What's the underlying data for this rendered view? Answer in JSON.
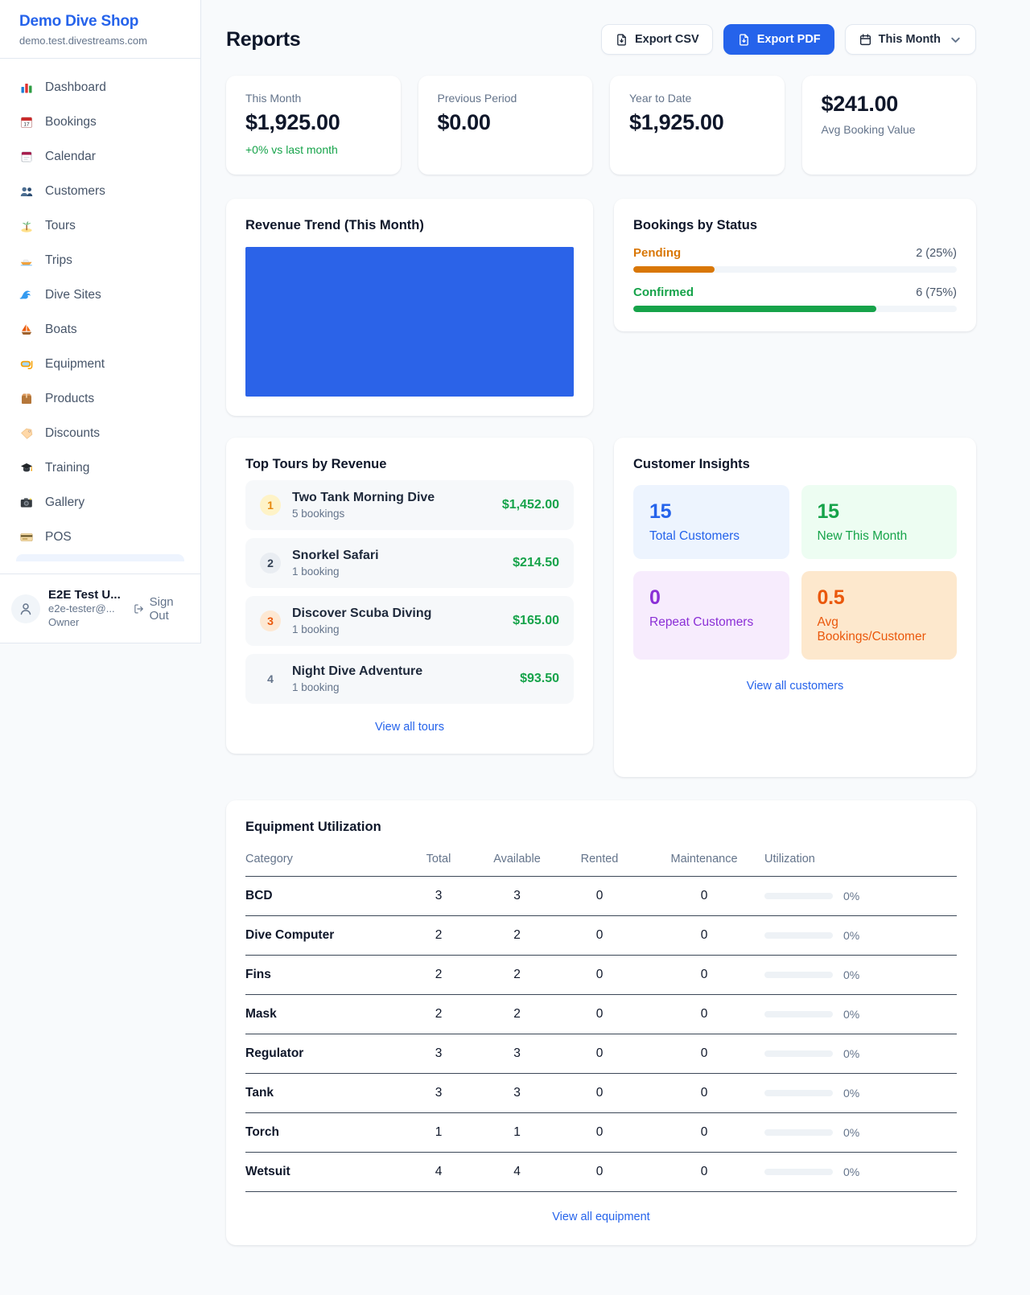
{
  "colors": {
    "accent_blue": "#2563eb",
    "chart_blue": "#2b63e8",
    "green": "#16a34a",
    "pending_orange": "#d97706",
    "maintenance_orange": "#f76707",
    "purple": "#8b2fd6"
  },
  "sidebar": {
    "brand": {
      "name": "Demo Dive Shop",
      "domain": "demo.test.divestreams.com"
    },
    "nav": [
      {
        "icon": "bar-chart",
        "label": "Dashboard"
      },
      {
        "icon": "calendar-date",
        "label": "Bookings"
      },
      {
        "icon": "calendar",
        "label": "Calendar"
      },
      {
        "icon": "users",
        "label": "Customers"
      },
      {
        "icon": "palm-island",
        "label": "Tours"
      },
      {
        "icon": "speedboat",
        "label": "Trips"
      },
      {
        "icon": "wave",
        "label": "Dive Sites"
      },
      {
        "icon": "sailboat",
        "label": "Boats"
      },
      {
        "icon": "dive-mask",
        "label": "Equipment"
      },
      {
        "icon": "box",
        "label": "Products"
      },
      {
        "icon": "tag",
        "label": "Discounts"
      },
      {
        "icon": "grad-cap",
        "label": "Training"
      },
      {
        "icon": "camera",
        "label": "Gallery"
      },
      {
        "icon": "credit-card",
        "label": "POS"
      }
    ],
    "user": {
      "name": "E2E Test U...",
      "email": "e2e-tester@...",
      "role": "Owner",
      "sign_out": "Sign Out"
    }
  },
  "header": {
    "title": "Reports",
    "export_csv": "Export CSV",
    "export_pdf": "Export PDF",
    "period": "This Month"
  },
  "stats": [
    {
      "label": "This Month",
      "value": "$1,925.00",
      "delta": "+0% vs last month"
    },
    {
      "label": "Previous Period",
      "value": "$0.00"
    },
    {
      "label": "Year to Date",
      "value": "$1,925.00"
    },
    {
      "label": "Avg Booking Value",
      "value": "$241.00"
    }
  ],
  "revenue_trend": {
    "title": "Revenue Trend (This Month)"
  },
  "bookings_by_status": {
    "title": "Bookings by Status",
    "rows": [
      {
        "label": "Pending",
        "count": "2 (25%)",
        "pct": 25,
        "color": "#d97706"
      },
      {
        "label": "Confirmed",
        "count": "6 (75%)",
        "pct": 75,
        "color": "#16a34a"
      }
    ]
  },
  "top_tours": {
    "title": "Top Tours by Revenue",
    "items": [
      {
        "rank": "1",
        "name": "Two Tank Morning Dive",
        "bookings": "5 bookings",
        "revenue": "$1,452.00"
      },
      {
        "rank": "2",
        "name": "Snorkel Safari",
        "bookings": "1 booking",
        "revenue": "$214.50"
      },
      {
        "rank": "3",
        "name": "Discover Scuba Diving",
        "bookings": "1 booking",
        "revenue": "$165.00"
      },
      {
        "rank": "4",
        "name": "Night Dive Adventure",
        "bookings": "1 booking",
        "revenue": "$93.50"
      }
    ],
    "view_all": "View all tours"
  },
  "customer_insights": {
    "title": "Customer Insights",
    "tiles": [
      {
        "value": "15",
        "label": "Total Customers",
        "theme": "blue"
      },
      {
        "value": "15",
        "label": "New This Month",
        "theme": "green"
      },
      {
        "value": "0",
        "label": "Repeat Customers",
        "theme": "purple"
      },
      {
        "value": "0.5",
        "label": "Avg Bookings/Customer",
        "theme": "orange"
      }
    ],
    "view_all": "View all customers"
  },
  "equipment": {
    "title": "Equipment Utilization",
    "columns": [
      "Category",
      "Total",
      "Available",
      "Rented",
      "Maintenance",
      "Utilization"
    ],
    "rows": [
      {
        "category": "BCD",
        "total": "3",
        "available": "3",
        "rented": "0",
        "maintenance": "0",
        "utilization": "0%",
        "utilization_pct": 0
      },
      {
        "category": "Dive Computer",
        "total": "2",
        "available": "2",
        "rented": "0",
        "maintenance": "0",
        "utilization": "0%",
        "utilization_pct": 0
      },
      {
        "category": "Fins",
        "total": "2",
        "available": "2",
        "rented": "0",
        "maintenance": "0",
        "utilization": "0%",
        "utilization_pct": 0
      },
      {
        "category": "Mask",
        "total": "2",
        "available": "2",
        "rented": "0",
        "maintenance": "0",
        "utilization": "0%",
        "utilization_pct": 0
      },
      {
        "category": "Regulator",
        "total": "3",
        "available": "3",
        "rented": "0",
        "maintenance": "0",
        "utilization": "0%",
        "utilization_pct": 0
      },
      {
        "category": "Tank",
        "total": "3",
        "available": "3",
        "rented": "0",
        "maintenance": "0",
        "utilization": "0%",
        "utilization_pct": 0
      },
      {
        "category": "Torch",
        "total": "1",
        "available": "1",
        "rented": "0",
        "maintenance": "0",
        "utilization": "0%",
        "utilization_pct": 0
      },
      {
        "category": "Wetsuit",
        "total": "4",
        "available": "4",
        "rented": "0",
        "maintenance": "0",
        "utilization": "0%",
        "utilization_pct": 0
      }
    ],
    "view_all": "View all equipment"
  }
}
